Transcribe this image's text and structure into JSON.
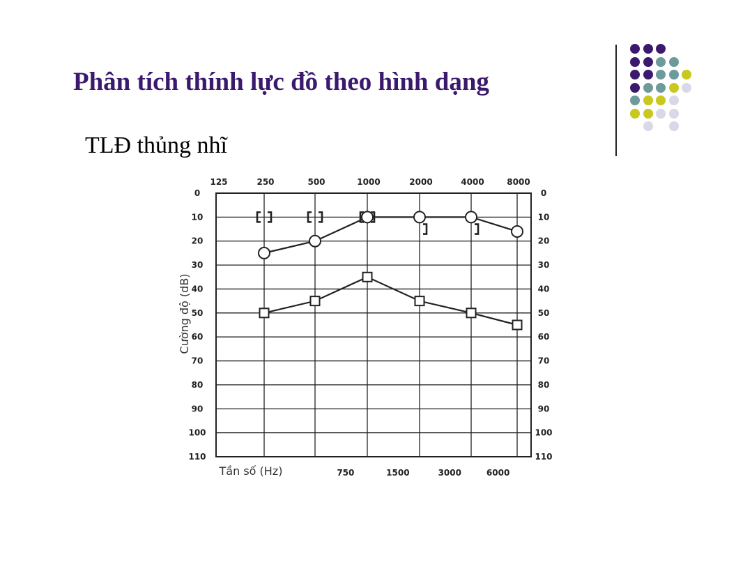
{
  "slide": {
    "title": "Phân tích thính lực đồ theo hình dạng",
    "subtitle": "TLĐ thủng nhĩ"
  },
  "colors": {
    "title": "#3b1a6e",
    "dot_purple": "#3b1a6e",
    "dot_teal": "#6e9a9b",
    "dot_yellow": "#c8c81e",
    "dot_lavender": "#d8d8e8"
  },
  "dot_grid": [
    [
      "purple",
      "purple",
      "purple",
      null,
      null
    ],
    [
      "purple",
      "purple",
      "teal",
      "teal",
      null
    ],
    [
      "purple",
      "purple",
      "teal",
      "teal",
      "yellow"
    ],
    [
      "purple",
      "teal",
      "teal",
      "yellow",
      "lavender"
    ],
    [
      "teal",
      "yellow",
      "yellow",
      "lavender",
      null
    ],
    [
      "yellow",
      "yellow",
      "lavender",
      "lavender",
      null
    ],
    [
      null,
      "lavender",
      null,
      "lavender",
      null
    ]
  ],
  "chart_data": {
    "type": "line",
    "top_ticks": [
      "125",
      "250",
      "500",
      "1000",
      "2000",
      "4000",
      "8000"
    ],
    "bottom_ticks": [
      "750",
      "1500",
      "3000",
      "6000"
    ],
    "y_ticks": [
      "0",
      "10",
      "20",
      "30",
      "40",
      "50",
      "60",
      "70",
      "80",
      "90",
      "100",
      "110"
    ],
    "ylabel": "Cường độ (dB)",
    "xlabel": "Tần số (Hz)",
    "ylim": [
      0,
      110
    ],
    "y_inverted": true,
    "grid": true,
    "series": [
      {
        "marker": "circle",
        "points": [
          {
            "x": 250,
            "y": 25
          },
          {
            "x": 500,
            "y": 20
          },
          {
            "x": 1000,
            "y": 10
          },
          {
            "x": 2000,
            "y": 10
          },
          {
            "x": 4000,
            "y": 10
          },
          {
            "x": 8000,
            "y": 16
          }
        ]
      },
      {
        "marker": "square",
        "points": [
          {
            "x": 250,
            "y": 50
          },
          {
            "x": 500,
            "y": 45
          },
          {
            "x": 1000,
            "y": 35
          },
          {
            "x": 2000,
            "y": 45
          },
          {
            "x": 4000,
            "y": 50
          },
          {
            "x": 8000,
            "y": 55
          }
        ]
      }
    ],
    "bone_conduction": [
      {
        "x": 250,
        "y": 10
      },
      {
        "x": 500,
        "y": 10
      },
      {
        "x": 1000,
        "y": 10
      },
      {
        "x": 2000,
        "y": 15
      },
      {
        "x": 4000,
        "y": 15
      }
    ]
  }
}
